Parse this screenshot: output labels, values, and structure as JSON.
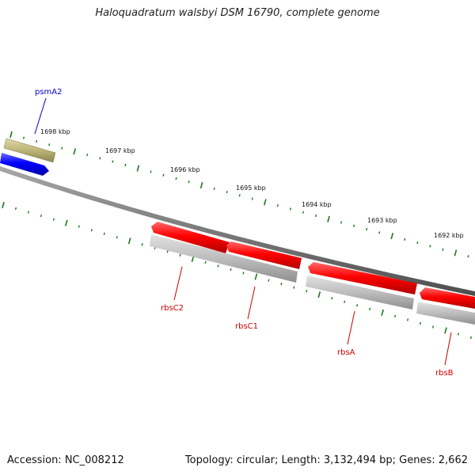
{
  "title": "Haloquadratum walsbyi DSM 16790, complete genome",
  "footer": {
    "accession": "Accession: NC_008212",
    "summary": "Topology: circular; Length: 3,132,494 bp; Genes: 2,662"
  },
  "ticks": [
    "1698 kbp",
    "1697 kbp",
    "1696 kbp",
    "1695 kbp",
    "1694 kbp",
    "1693 kbp",
    "1692 kbp"
  ],
  "genes": [
    {
      "name": "psmA2",
      "color": "#0000cc"
    },
    {
      "name": "rbsC2",
      "color": "#cc0000"
    },
    {
      "name": "rbsC1",
      "color": "#cc0000"
    },
    {
      "name": "rbsA",
      "color": "#cc0000"
    },
    {
      "name": "rbsB",
      "color": "#cc0000"
    }
  ]
}
